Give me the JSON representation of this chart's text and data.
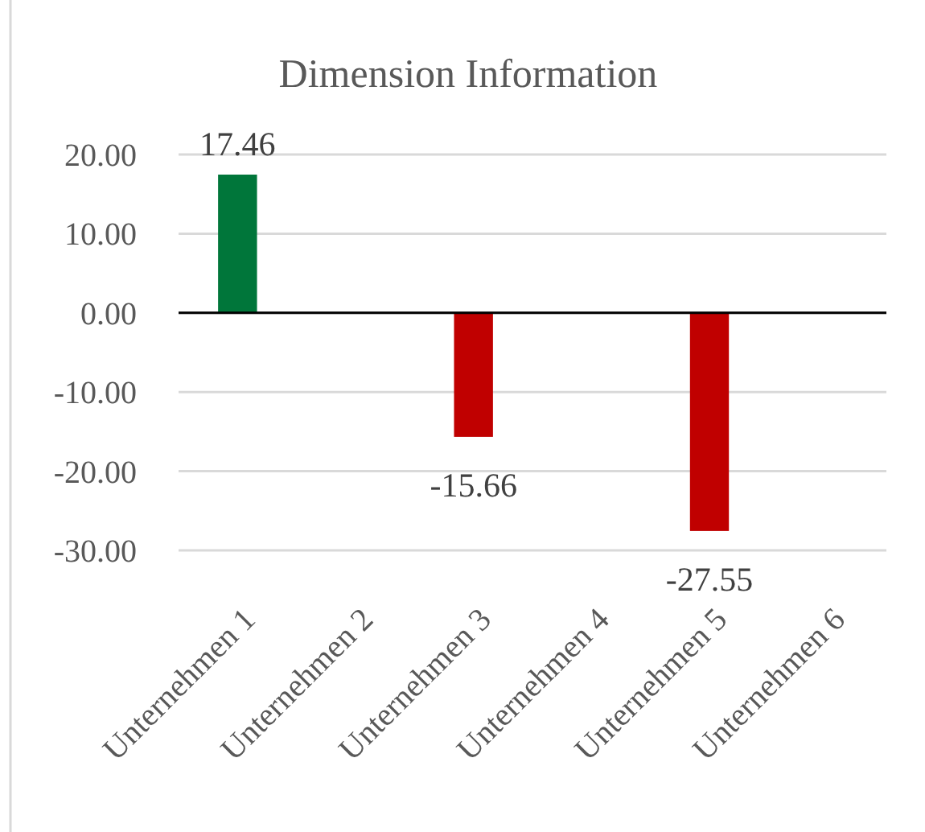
{
  "chart_data": {
    "type": "bar",
    "title": "Dimension Information",
    "categories": [
      "Unternehmen 1",
      "Unternehmen 2",
      "Unternehmen 3",
      "Unternehmen 4",
      "Unternehmen 5",
      "Unternehmen 6"
    ],
    "values": [
      17.46,
      null,
      -15.66,
      null,
      -27.55,
      null
    ],
    "colors": [
      "#00763a",
      null,
      "#c00000",
      null,
      "#c00000",
      null
    ],
    "ylim": [
      -30,
      20
    ],
    "yticks": [
      {
        "value": 20,
        "label": "20.00"
      },
      {
        "value": 10,
        "label": "10.00"
      },
      {
        "value": 0,
        "label": "0.00"
      },
      {
        "value": -10,
        "label": "-10.00"
      },
      {
        "value": -20,
        "label": "-20.00"
      },
      {
        "value": -30,
        "label": "-30.00"
      }
    ],
    "grid": "y",
    "data_labels": true
  }
}
